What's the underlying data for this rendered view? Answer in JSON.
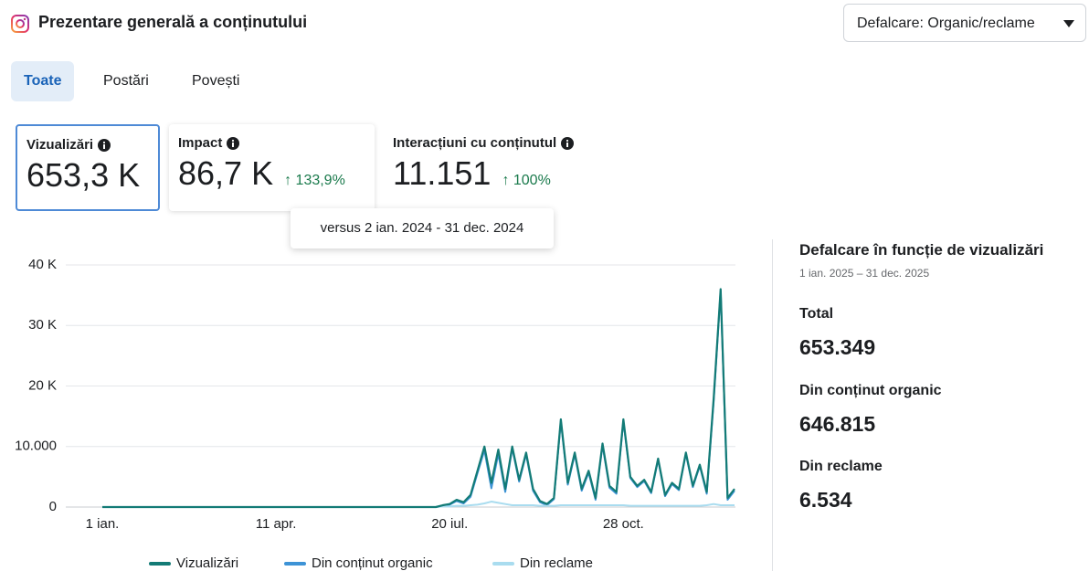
{
  "header": {
    "title": "Prezentare generală a conținutului",
    "dropdown": "Defalcare: Organic/reclame"
  },
  "tabs": [
    "Toate",
    "Postări",
    "Povești"
  ],
  "active_tab": 0,
  "metrics": [
    {
      "label": "Vizualizări",
      "value": "653,3 K"
    },
    {
      "label": "Impact",
      "value": "86,7 K",
      "change": "↑ 133,9%"
    },
    {
      "label": "Interacțiuni cu conținutul",
      "value": "11.151",
      "change": "↑ 100%"
    }
  ],
  "active_metric": 0,
  "tooltip": "versus 2 ian. 2024 - 31 dec. 2024",
  "chart_data": {
    "type": "line",
    "categories": [
      "1 ian.",
      null,
      null,
      null,
      null,
      null,
      null,
      null,
      null,
      null,
      null,
      null,
      null,
      null,
      null,
      null,
      null,
      null,
      null,
      null,
      null,
      null,
      null,
      null,
      null,
      "11 apr.",
      null,
      null,
      null,
      null,
      null,
      null,
      null,
      null,
      null,
      null,
      null,
      null,
      null,
      null,
      null,
      null,
      null,
      null,
      null,
      null,
      null,
      null,
      null,
      null,
      "20 iul.",
      null,
      null,
      null,
      null,
      null,
      null,
      null,
      null,
      null,
      null,
      null,
      null,
      null,
      null,
      null,
      null,
      null,
      null,
      null,
      null,
      null,
      null,
      null,
      null,
      "28 oct.",
      null,
      null,
      null,
      null,
      null,
      null,
      null,
      null,
      null,
      null,
      null,
      null,
      null,
      null,
      null,
      null
    ],
    "series": [
      {
        "name": "Vizualizări",
        "color": "#137b76",
        "values": [
          0,
          0,
          0,
          0,
          0,
          0,
          0,
          0,
          0,
          0,
          0,
          0,
          0,
          0,
          0,
          0,
          0,
          0,
          0,
          0,
          0,
          0,
          0,
          0,
          0,
          0,
          0,
          0,
          0,
          0,
          0,
          0,
          0,
          0,
          0,
          0,
          0,
          0,
          0,
          0,
          0,
          0,
          0,
          0,
          0,
          0,
          0,
          0,
          0,
          300,
          500,
          1200,
          800,
          2000,
          6000,
          10000,
          4000,
          9500,
          3000,
          10000,
          4500,
          9000,
          3000,
          1000,
          500,
          1500,
          14500,
          4000,
          9000,
          3000,
          6000,
          1500,
          10500,
          3500,
          2500,
          14500,
          5000,
          3500,
          4500,
          2500,
          8000,
          2000,
          4000,
          3000,
          9000,
          3500,
          7000,
          2500,
          18000,
          36000,
          1500,
          3000
        ]
      },
      {
        "name": "Din conținut organic",
        "color": "#3d93d6",
        "values": [
          0,
          0,
          0,
          0,
          0,
          0,
          0,
          0,
          0,
          0,
          0,
          0,
          0,
          0,
          0,
          0,
          0,
          0,
          0,
          0,
          0,
          0,
          0,
          0,
          0,
          0,
          0,
          0,
          0,
          0,
          0,
          0,
          0,
          0,
          0,
          0,
          0,
          0,
          0,
          0,
          0,
          0,
          0,
          0,
          0,
          0,
          0,
          0,
          0,
          200,
          400,
          1000,
          600,
          1700,
          5600,
          9400,
          3100,
          8800,
          2500,
          9700,
          4200,
          8700,
          2700,
          800,
          300,
          1300,
          14200,
          3700,
          8700,
          2700,
          5700,
          1200,
          10200,
          3200,
          2200,
          14200,
          4800,
          3300,
          4300,
          2300,
          7800,
          1800,
          3800,
          2800,
          8800,
          3300,
          6800,
          2200,
          17500,
          35700,
          1200,
          2700
        ]
      },
      {
        "name": "Din reclame",
        "color": "#a9dcef",
        "values": [
          0,
          0,
          0,
          0,
          0,
          0,
          0,
          0,
          0,
          0,
          0,
          0,
          0,
          0,
          0,
          0,
          0,
          0,
          0,
          0,
          0,
          0,
          0,
          0,
          0,
          0,
          0,
          0,
          0,
          0,
          0,
          0,
          0,
          0,
          0,
          0,
          0,
          0,
          0,
          0,
          0,
          0,
          0,
          0,
          0,
          0,
          0,
          0,
          0,
          100,
          100,
          200,
          200,
          300,
          400,
          600,
          900,
          700,
          500,
          300,
          300,
          300,
          300,
          200,
          200,
          200,
          300,
          300,
          300,
          300,
          300,
          300,
          300,
          300,
          300,
          300,
          200,
          200,
          200,
          200,
          200,
          200,
          200,
          200,
          200,
          200,
          200,
          300,
          500,
          300,
          300,
          300
        ]
      }
    ],
    "ylim": [
      0,
      40000
    ],
    "yticks": [
      0,
      {
        "value": 10000,
        "label": "10.000"
      },
      {
        "value": 20000,
        "label": "20 K"
      },
      {
        "value": 30000,
        "label": "30 K"
      },
      {
        "value": 40000,
        "label": "40 K"
      }
    ],
    "grid": true,
    "legend": "bottom"
  },
  "breakdown": {
    "title": "Defalcare în funcție de vizualizări",
    "date_range": "1 ian. 2025 – 31 dec. 2025",
    "items": [
      {
        "label": "Total",
        "value": "653.349"
      },
      {
        "label": "Din conținut organic",
        "value": "646.815"
      },
      {
        "label": "Din reclame",
        "value": "6.534"
      }
    ]
  }
}
